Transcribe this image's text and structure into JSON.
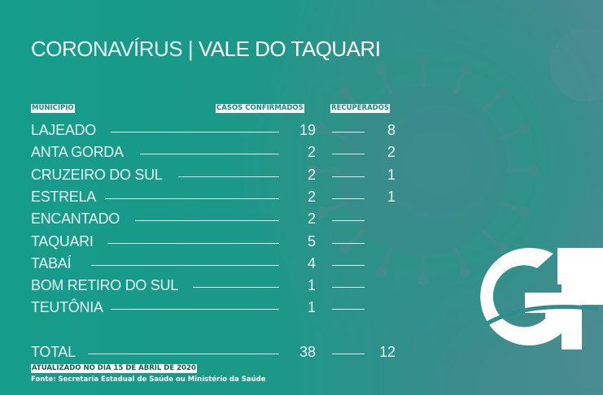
{
  "title": {
    "prefix": "CORONAVÍRUS | ",
    "region": "VALE DO TAQUARI"
  },
  "headers": {
    "municipio": "MUNICÍPIO",
    "confirmados": "CASOS CONFIRMADOS",
    "recuperados": "RECUPERADOS"
  },
  "rows": [
    {
      "name": "LAJEADO",
      "confirmed": "19",
      "recovered": "8"
    },
    {
      "name": "ANTA GORDA",
      "confirmed": "2",
      "recovered": "2"
    },
    {
      "name": "CRUZEIRO DO SUL",
      "confirmed": "2",
      "recovered": "1"
    },
    {
      "name": "ESTRELA",
      "confirmed": "2",
      "recovered": "1"
    },
    {
      "name": "ENCANTADO",
      "confirmed": "2",
      "recovered": ""
    },
    {
      "name": "TAQUARI",
      "confirmed": "5",
      "recovered": ""
    },
    {
      "name": "TABAÍ",
      "confirmed": "4",
      "recovered": ""
    },
    {
      "name": "BOM RETIRO DO SUL",
      "confirmed": "1",
      "recovered": ""
    },
    {
      "name": "TEUTÔNIA",
      "confirmed": "1",
      "recovered": ""
    }
  ],
  "total": {
    "name": "TOTAL",
    "confirmed": "38",
    "recovered": "12"
  },
  "updated": "ATUALIZADO NO DIA 15 DE ABRIL DE 2020",
  "source": "Fonte: Secretaria Estadual de Saúde ou Ministério da Saúde",
  "logo": {
    "text": "GP",
    "color": "#ffffff"
  },
  "colors": {
    "background": "#1b9888",
    "label_text": "#17877b"
  }
}
